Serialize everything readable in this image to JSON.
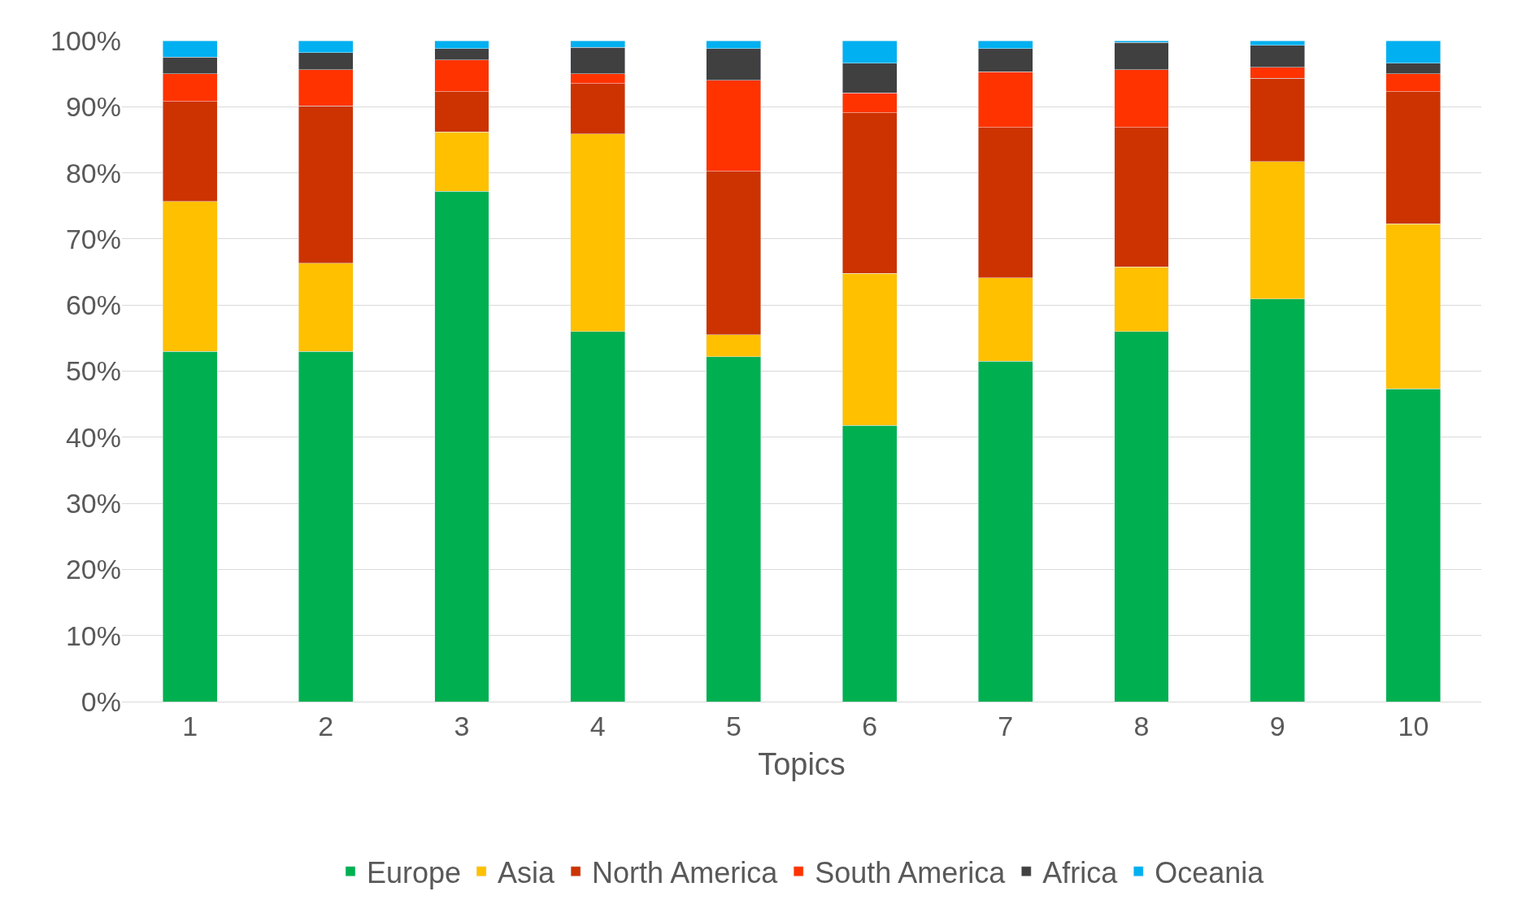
{
  "chart_data": {
    "type": "bar",
    "stacked": true,
    "xlabel": "Topics",
    "categories": [
      "1",
      "2",
      "3",
      "4",
      "5",
      "6",
      "7",
      "8",
      "9",
      "10"
    ],
    "series": [
      {
        "name": "Europe",
        "color": "#00b050",
        "values": [
          53,
          53,
          77.2,
          56,
          52.2,
          41.8,
          51.5,
          56,
          60.9,
          47.3
        ]
      },
      {
        "name": "Asia",
        "color": "#ffc000",
        "values": [
          22.7,
          13.3,
          9,
          29.9,
          3.3,
          23,
          12.6,
          9.8,
          20.8,
          25
        ]
      },
      {
        "name": "North America",
        "color": "#cc3300",
        "values": [
          15.1,
          23.8,
          6.1,
          7.6,
          24.7,
          24.3,
          22.8,
          21.1,
          12.6,
          20
        ]
      },
      {
        "name": "South America",
        "color": "#ff3300",
        "values": [
          4.2,
          5.5,
          4.8,
          1.5,
          13.8,
          3,
          8.4,
          8.7,
          1.7,
          2.7
        ]
      },
      {
        "name": "Africa",
        "color": "#404040",
        "values": [
          2.5,
          2.6,
          1.7,
          4,
          4.8,
          4.5,
          3.5,
          4.1,
          3.3,
          1.6
        ]
      },
      {
        "name": "Oceania",
        "color": "#00b0f0",
        "values": [
          2.5,
          1.8,
          1.2,
          1,
          1.2,
          3.4,
          1.2,
          0.3,
          0.7,
          3.4
        ]
      }
    ],
    "ylim": [
      0,
      100
    ],
    "yticks": [
      {
        "value": 0,
        "label": "0%"
      },
      {
        "value": 10,
        "label": "10%"
      },
      {
        "value": 20,
        "label": "20%"
      },
      {
        "value": 30,
        "label": "30%"
      },
      {
        "value": 40,
        "label": "40%"
      },
      {
        "value": 50,
        "label": "50%"
      },
      {
        "value": 60,
        "label": "60%"
      },
      {
        "value": 70,
        "label": "70%"
      },
      {
        "value": 80,
        "label": "80%"
      },
      {
        "value": 90,
        "label": "90%"
      },
      {
        "value": 100,
        "label": "100%"
      }
    ],
    "grid": "y",
    "legend": "bottom"
  }
}
